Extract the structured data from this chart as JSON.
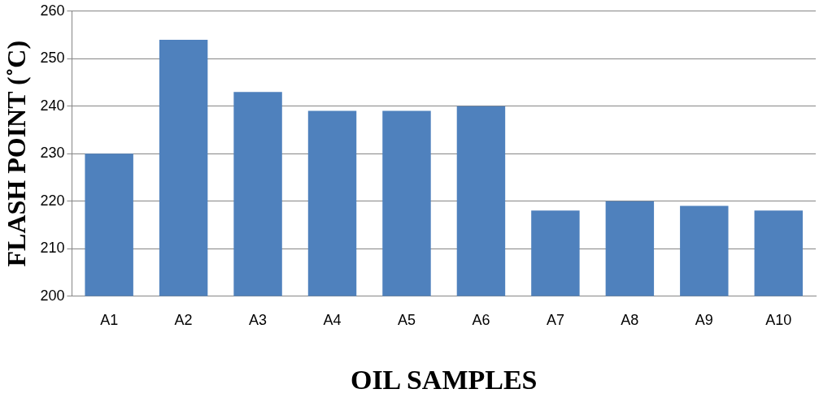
{
  "chart_data": {
    "type": "bar",
    "xlabel": "OIL SAMPLES",
    "ylabel": "FLASH POINT (˚C)",
    "categories": [
      "A1",
      "A2",
      "A3",
      "A4",
      "A5",
      "A6",
      "A7",
      "A8",
      "A9",
      "A10"
    ],
    "values": [
      230,
      254,
      243,
      239,
      239,
      240,
      218,
      220,
      219,
      218
    ],
    "color": "#4f81bd",
    "ylim": [
      200,
      260
    ],
    "yticks": [
      200,
      210,
      220,
      230,
      240,
      250,
      260
    ],
    "grid": "y",
    "legend": false
  }
}
